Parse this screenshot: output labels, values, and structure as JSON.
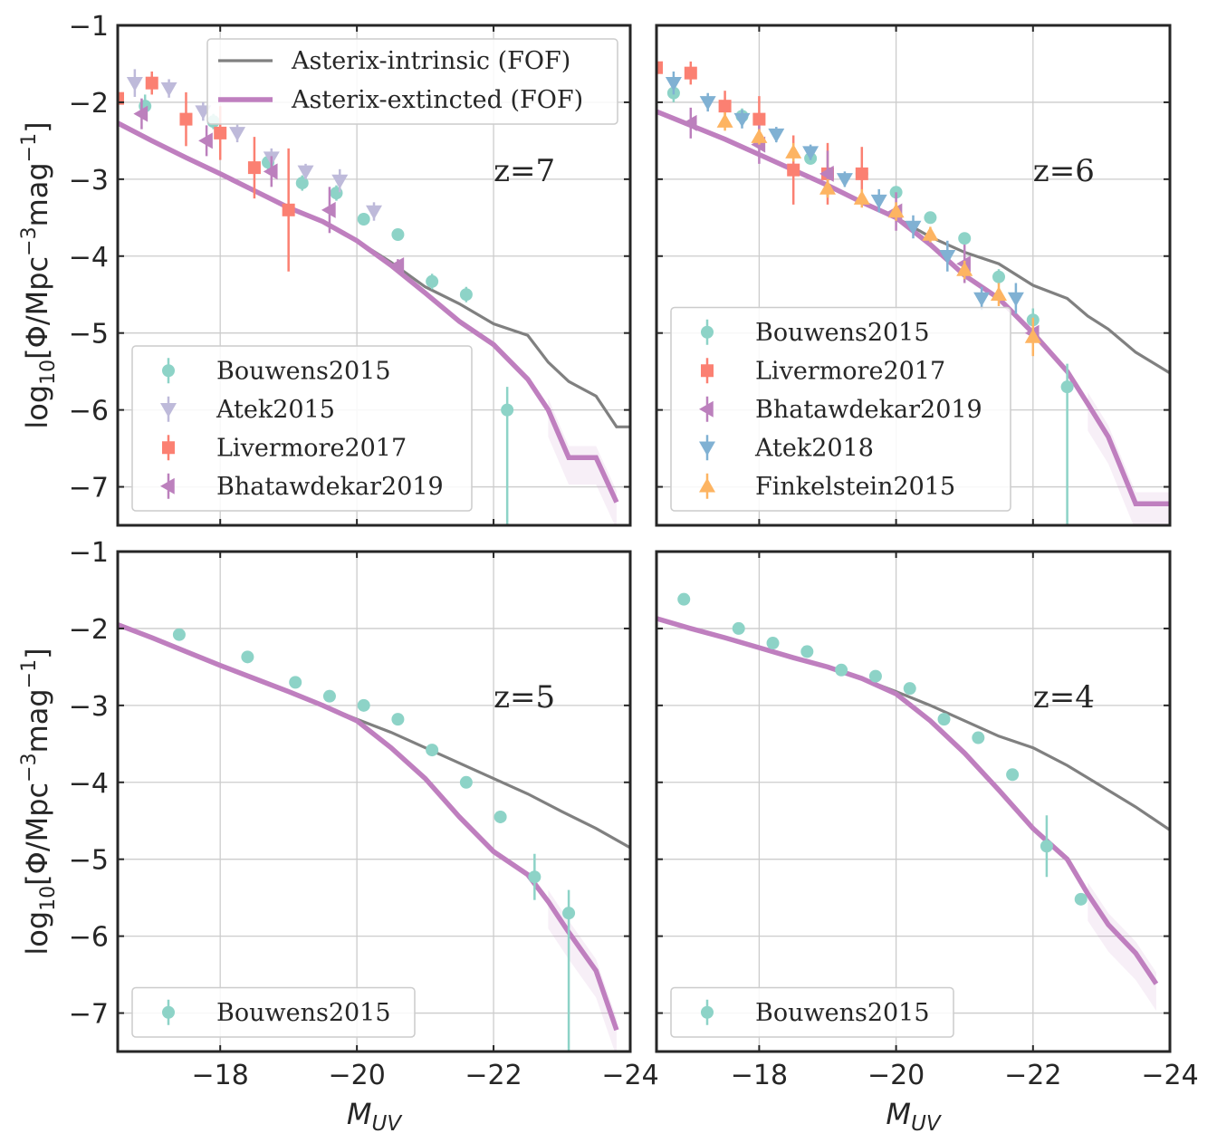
{
  "chart_data": {
    "type": "scatter",
    "shared": {
      "xlabel": "M_UV",
      "ylabel": "log10[Φ/Mpc⁻³mag⁻¹]",
      "xlim": [
        -16.5,
        -24
      ],
      "ylim": [
        -7.5,
        -1
      ],
      "xticks": [
        -18,
        -20,
        -22,
        -24
      ],
      "xtick_labels": [
        "−18",
        "−20",
        "−22",
        "−24"
      ],
      "yticks": [
        -1,
        -2,
        -3,
        -4,
        -5,
        -6,
        -7
      ],
      "ytick_labels": [
        "−1",
        "−2",
        "−3",
        "−4",
        "−5",
        "−6",
        "−7"
      ],
      "grid": true,
      "colors": {
        "intrinsic": "#808080",
        "extincted": "#bf7fbf",
        "Bouwens2015": "#8dd3c7",
        "Atek2015": "#bebada",
        "Livermore2017": "#fb8072",
        "Bhatawdekar2019": "#bc80bd",
        "Atek2018": "#80b1d3",
        "Finkelstein2015": "#fdb462"
      }
    },
    "panels": [
      {
        "id": "z7",
        "label": "z=7",
        "show_xlabel": false,
        "show_ylabel": true,
        "line_legend": [
          "Asterix-intrinsic (FOF)",
          "Asterix-extincted (FOF)"
        ],
        "intrinsic": {
          "x": [
            -16.5,
            -17.0,
            -17.5,
            -18.0,
            -18.5,
            -19.0,
            -19.5,
            -20.0,
            -20.5,
            -21.0,
            -21.5,
            -22.0,
            -22.5,
            -22.8,
            -23.1,
            -23.5,
            -23.8,
            -24.0
          ],
          "y": [
            -2.27,
            -2.5,
            -2.72,
            -2.93,
            -3.15,
            -3.37,
            -3.55,
            -3.8,
            -4.08,
            -4.4,
            -4.62,
            -4.88,
            -5.03,
            -5.38,
            -5.63,
            -5.82,
            -6.22,
            -6.22
          ]
        },
        "extincted": {
          "x": [
            -16.5,
            -17.0,
            -17.5,
            -18.0,
            -18.5,
            -19.0,
            -19.5,
            -20.0,
            -20.5,
            -21.0,
            -21.5,
            -22.0,
            -22.5,
            -22.8,
            -23.1,
            -23.5,
            -23.8
          ],
          "y": [
            -2.27,
            -2.5,
            -2.72,
            -2.93,
            -3.15,
            -3.37,
            -3.55,
            -3.8,
            -4.12,
            -4.48,
            -4.85,
            -5.15,
            -5.6,
            -6.0,
            -6.62,
            -6.62,
            -7.2
          ]
        },
        "markers": [
          {
            "name": "Bouwens2015",
            "shape": "circle",
            "x": [
              -16.9,
              -17.9,
              -18.7,
              -19.2,
              -19.7,
              -20.1,
              -20.6,
              -21.1,
              -21.6,
              -22.2
            ],
            "y": [
              -2.05,
              -2.25,
              -2.78,
              -3.05,
              -3.18,
              -3.52,
              -3.72,
              -4.33,
              -4.5,
              -6.0
            ],
            "err": [
              0.15,
              0.1,
              0.1,
              0.1,
              0.1,
              0.08,
              0.06,
              0.1,
              0.1,
              0.3
            ]
          },
          {
            "name": "Atek2015",
            "shape": "tri_down",
            "x": [
              -16.75,
              -17.25,
              -17.75,
              -18.25,
              -18.75,
              -19.25,
              -19.75,
              -20.25
            ],
            "y": [
              -1.75,
              -1.82,
              -2.12,
              -2.4,
              -2.72,
              -2.9,
              -3.02,
              -3.42
            ],
            "err": [
              0.18,
              0.12,
              0.12,
              0.12,
              0.12,
              0.1,
              0.15,
              0.12
            ]
          },
          {
            "name": "Livermore2017",
            "shape": "square",
            "x": [
              -16.5,
              -17.0,
              -17.5,
              -18.0,
              -18.5,
              -19.0
            ],
            "y": [
              -1.95,
              -1.75,
              -2.22,
              -2.4,
              -2.85,
              -3.4
            ],
            "err": [
              0.15,
              0.15,
              0.35,
              0.35,
              0.4,
              0.8
            ]
          },
          {
            "name": "Bhatawdekar2019",
            "shape": "tri_left",
            "x": [
              -16.85,
              -17.8,
              -18.75,
              -19.6,
              -20.6
            ],
            "y": [
              -2.15,
              -2.5,
              -2.9,
              -3.4,
              -4.12
            ],
            "err": [
              0.2,
              0.2,
              0.2,
              0.3,
              0.08
            ]
          }
        ],
        "legend_entries": [
          "Bouwens2015",
          "Atek2015",
          "Livermore2017",
          "Bhatawdekar2019"
        ]
      },
      {
        "id": "z6",
        "label": "z=6",
        "show_xlabel": false,
        "show_ylabel": false,
        "line_legend": [],
        "intrinsic": {
          "x": [
            -16.5,
            -17.0,
            -17.5,
            -18.0,
            -18.5,
            -19.0,
            -19.5,
            -20.0,
            -20.5,
            -21.0,
            -21.5,
            -22.0,
            -22.5,
            -22.8,
            -23.1,
            -23.5,
            -24.0
          ],
          "y": [
            -2.12,
            -2.3,
            -2.48,
            -2.68,
            -2.88,
            -3.08,
            -3.3,
            -3.5,
            -3.75,
            -3.95,
            -4.1,
            -4.38,
            -4.55,
            -4.78,
            -4.95,
            -5.25,
            -5.52
          ]
        },
        "extincted": {
          "x": [
            -16.5,
            -17.0,
            -17.5,
            -18.0,
            -18.5,
            -19.0,
            -19.5,
            -20.0,
            -20.5,
            -21.0,
            -21.5,
            -22.0,
            -22.5,
            -22.8,
            -23.1,
            -23.5,
            -24.0
          ],
          "y": [
            -2.12,
            -2.3,
            -2.48,
            -2.68,
            -2.88,
            -3.08,
            -3.3,
            -3.5,
            -3.85,
            -4.25,
            -4.55,
            -5.0,
            -5.5,
            -5.92,
            -6.35,
            -7.22,
            -7.22
          ]
        },
        "markers": [
          {
            "name": "Bouwens2015",
            "shape": "circle",
            "x": [
              -16.75,
              -17.75,
              -18.75,
              -19.5,
              -20.0,
              -20.5,
              -21.0,
              -21.5,
              -22.0,
              -22.5
            ],
            "y": [
              -1.88,
              -2.18,
              -2.73,
              -2.93,
              -3.17,
              -3.5,
              -3.77,
              -4.27,
              -4.83,
              -5.7
            ],
            "err": [
              0.12,
              0.1,
              0.08,
              0.08,
              0.06,
              0.06,
              0.06,
              0.1,
              0.15,
              0.3
            ]
          },
          {
            "name": "Livermore2017",
            "shape": "square",
            "x": [
              -16.5,
              -17.0,
              -17.5,
              -18.0,
              -18.5,
              -19.0,
              -19.5
            ],
            "y": [
              -1.55,
              -1.62,
              -2.05,
              -2.22,
              -2.88,
              -2.93,
              -2.93
            ],
            "err": [
              0.15,
              0.15,
              0.2,
              0.3,
              0.45,
              0.4,
              0.35
            ]
          },
          {
            "name": "Bhatawdekar2019",
            "shape": "tri_left",
            "x": [
              -17.0,
              -18.0,
              -19.0,
              -20.0,
              -21.0,
              -22.0
            ],
            "y": [
              -2.27,
              -2.55,
              -2.93,
              -3.42,
              -4.1,
              -5.0
            ],
            "err": [
              0.2,
              0.25,
              0.3,
              0.25,
              0.25,
              0.1
            ]
          },
          {
            "name": "Atek2018",
            "shape": "tri_down",
            "x": [
              -16.75,
              -17.25,
              -17.75,
              -18.25,
              -18.75,
              -19.25,
              -19.75,
              -20.25,
              -20.75,
              -21.25,
              -21.75
            ],
            "y": [
              -1.75,
              -2.0,
              -2.22,
              -2.42,
              -2.65,
              -3.0,
              -3.28,
              -3.62,
              -4.0,
              -4.55,
              -4.55
            ],
            "err": [
              0.15,
              0.12,
              0.12,
              0.1,
              0.1,
              0.1,
              0.15,
              0.15,
              0.2,
              0.15,
              0.2
            ]
          },
          {
            "name": "Finkelstein2015",
            "shape": "tri_up",
            "x": [
              -17.5,
              -18.0,
              -18.5,
              -19.0,
              -19.5,
              -20.0,
              -20.5,
              -21.0,
              -21.5,
              -22.0
            ],
            "y": [
              -2.25,
              -2.45,
              -2.65,
              -3.12,
              -3.25,
              -3.42,
              -3.72,
              -4.18,
              -4.5,
              -5.05
            ],
            "err": [
              0.12,
              0.1,
              0.12,
              0.12,
              0.12,
              0.12,
              0.1,
              0.12,
              0.15,
              0.25
            ]
          }
        ],
        "legend_entries": [
          "Bouwens2015",
          "Livermore2017",
          "Bhatawdekar2019",
          "Atek2018",
          "Finkelstein2015"
        ]
      },
      {
        "id": "z5",
        "label": "z=5",
        "show_xlabel": true,
        "show_ylabel": true,
        "line_legend": [],
        "intrinsic": {
          "x": [
            -16.5,
            -17.0,
            -17.5,
            -18.0,
            -18.5,
            -19.0,
            -19.5,
            -20.0,
            -20.5,
            -21.0,
            -21.5,
            -22.0,
            -22.5,
            -23.0,
            -23.5,
            -24.0
          ],
          "y": [
            -1.95,
            -2.12,
            -2.3,
            -2.48,
            -2.65,
            -2.82,
            -3.0,
            -3.18,
            -3.35,
            -3.55,
            -3.75,
            -3.95,
            -4.15,
            -4.38,
            -4.6,
            -4.85
          ]
        },
        "extincted": {
          "x": [
            -16.5,
            -17.0,
            -17.5,
            -18.0,
            -18.5,
            -19.0,
            -19.5,
            -20.0,
            -20.5,
            -21.0,
            -21.5,
            -22.0,
            -22.5,
            -22.8,
            -23.1,
            -23.5,
            -23.8
          ],
          "y": [
            -1.95,
            -2.12,
            -2.3,
            -2.48,
            -2.65,
            -2.82,
            -3.0,
            -3.2,
            -3.55,
            -3.95,
            -4.45,
            -4.9,
            -5.2,
            -5.55,
            -5.95,
            -6.45,
            -7.22
          ]
        },
        "markers": [
          {
            "name": "Bouwens2015",
            "shape": "circle",
            "x": [
              -17.4,
              -18.4,
              -19.1,
              -19.6,
              -20.1,
              -20.6,
              -21.1,
              -21.6,
              -22.1,
              -22.6,
              -23.1
            ],
            "y": [
              -2.08,
              -2.37,
              -2.7,
              -2.88,
              -3.0,
              -3.18,
              -3.58,
              -4.0,
              -4.45,
              -5.23,
              -5.7
            ],
            "err": [
              0.06,
              0.05,
              0.05,
              0.04,
              0.04,
              0.04,
              0.05,
              0.05,
              0.08,
              0.3,
              0.3
            ]
          }
        ],
        "legend_entries": [
          "Bouwens2015"
        ]
      },
      {
        "id": "z4",
        "label": "z=4",
        "show_xlabel": true,
        "show_ylabel": false,
        "line_legend": [],
        "intrinsic": {
          "x": [
            -16.5,
            -17.0,
            -17.5,
            -18.0,
            -18.5,
            -19.0,
            -19.5,
            -20.0,
            -20.5,
            -21.0,
            -21.5,
            -22.0,
            -22.5,
            -23.0,
            -23.5,
            -24.0
          ],
          "y": [
            -1.87,
            -2.0,
            -2.12,
            -2.25,
            -2.38,
            -2.5,
            -2.65,
            -2.82,
            -3.0,
            -3.2,
            -3.4,
            -3.55,
            -3.78,
            -4.05,
            -4.32,
            -4.62
          ]
        },
        "extincted": {
          "x": [
            -16.5,
            -17.0,
            -17.5,
            -18.0,
            -18.5,
            -19.0,
            -19.5,
            -20.0,
            -20.5,
            -21.0,
            -21.5,
            -22.0,
            -22.5,
            -22.8,
            -23.1,
            -23.5,
            -23.8
          ],
          "y": [
            -1.87,
            -2.0,
            -2.12,
            -2.25,
            -2.38,
            -2.5,
            -2.65,
            -2.85,
            -3.2,
            -3.62,
            -4.1,
            -4.6,
            -5.0,
            -5.45,
            -5.85,
            -6.22,
            -6.62
          ]
        },
        "markers": [
          {
            "name": "Bouwens2015",
            "shape": "circle",
            "x": [
              -16.9,
              -17.7,
              -18.2,
              -18.7,
              -19.2,
              -19.7,
              -20.2,
              -20.7,
              -21.2,
              -21.7,
              -22.2,
              -22.7
            ],
            "y": [
              -1.62,
              -2.0,
              -2.19,
              -2.3,
              -2.54,
              -2.62,
              -2.78,
              -3.18,
              -3.42,
              -3.9,
              -4.83,
              -5.52
            ],
            "err": [
              0.03,
              0.03,
              0.03,
              0.03,
              0.03,
              0.03,
              0.03,
              0.03,
              0.03,
              0.04,
              0.4,
              0.05
            ]
          }
        ],
        "legend_entries": [
          "Bouwens2015"
        ]
      }
    ]
  }
}
